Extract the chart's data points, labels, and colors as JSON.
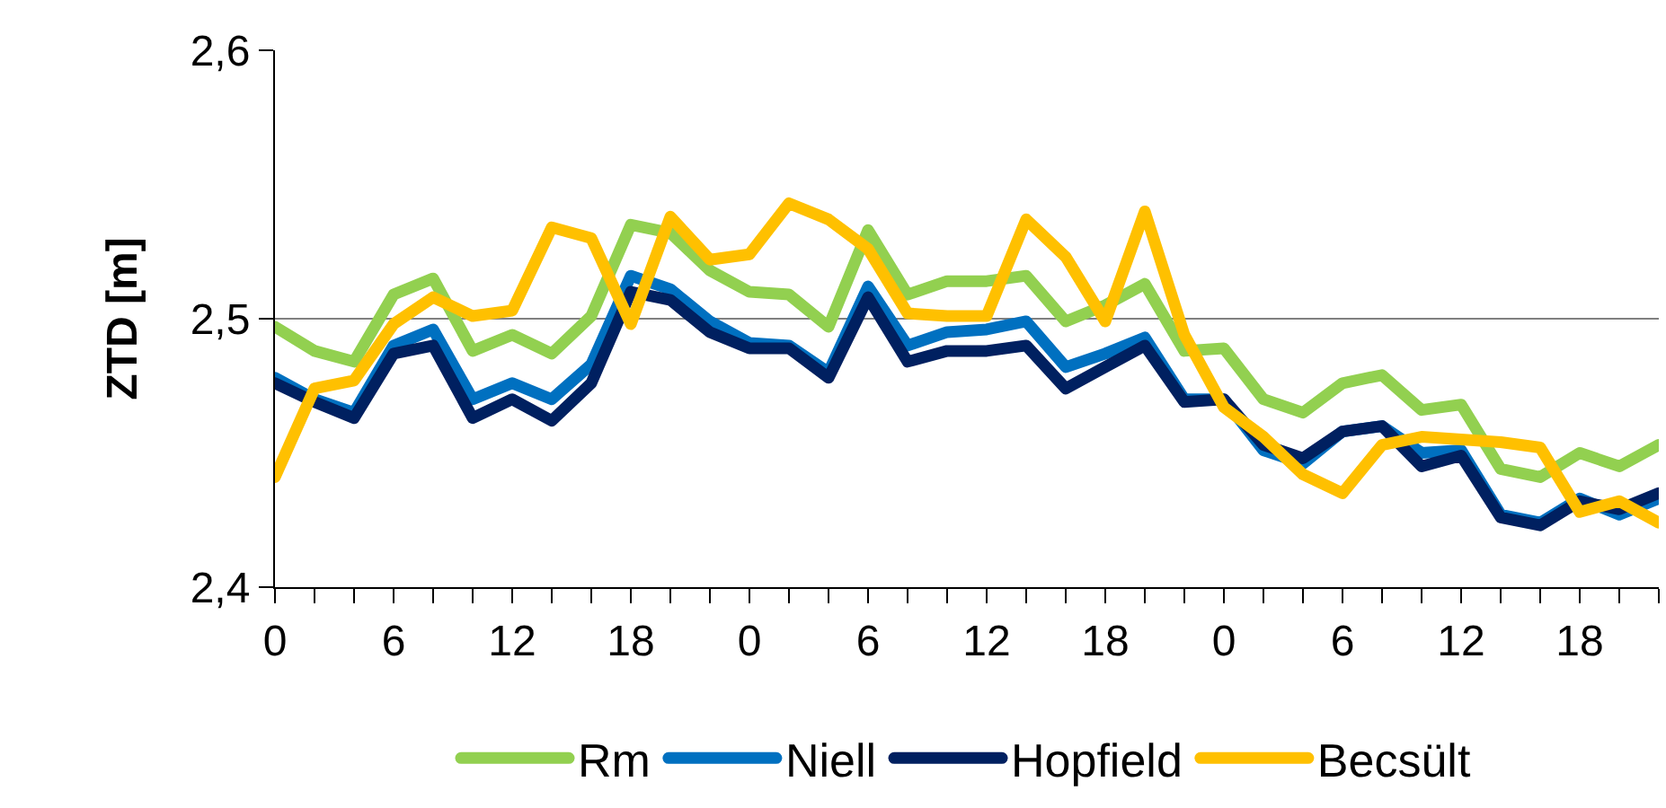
{
  "chart_data": {
    "type": "line",
    "ylabel": "ZTD [m]",
    "categories": [
      "0",
      null,
      null,
      "6",
      null,
      null,
      "12",
      null,
      null,
      "18",
      null,
      null,
      "0",
      null,
      null,
      "6",
      null,
      null,
      "12",
      null,
      null,
      "18",
      null,
      null,
      "0",
      null,
      null,
      "6",
      null,
      null,
      "12",
      null,
      null,
      "18",
      null,
      null
    ],
    "series": [
      {
        "name": "Rm",
        "color": "#92d050",
        "values": [
          2.497,
          2.488,
          2.484,
          2.509,
          2.515,
          2.488,
          2.494,
          2.487,
          2.501,
          2.535,
          2.532,
          2.518,
          2.51,
          2.509,
          2.497,
          2.533,
          2.509,
          2.514,
          2.514,
          2.516,
          2.499,
          2.505,
          2.513,
          2.488,
          2.489,
          2.47,
          2.465,
          2.476,
          2.479,
          2.466,
          2.468,
          2.444,
          2.441,
          2.45,
          2.445,
          2.453
        ]
      },
      {
        "name": "Niell",
        "color": "#0070c0",
        "values": [
          2.478,
          2.47,
          2.465,
          2.49,
          2.496,
          2.47,
          2.476,
          2.47,
          2.483,
          2.516,
          2.511,
          2.499,
          2.491,
          2.49,
          2.48,
          2.512,
          2.49,
          2.495,
          2.496,
          2.499,
          2.482,
          2.487,
          2.493,
          2.47,
          2.47,
          2.451,
          2.446,
          2.458,
          2.46,
          2.45,
          2.451,
          2.427,
          2.424,
          2.433,
          2.427,
          2.433
        ]
      },
      {
        "name": "Hopfield",
        "color": "#002060",
        "values": [
          2.476,
          2.469,
          2.463,
          2.487,
          2.49,
          2.463,
          2.47,
          2.462,
          2.476,
          2.51,
          2.507,
          2.495,
          2.489,
          2.489,
          2.478,
          2.508,
          2.484,
          2.488,
          2.488,
          2.49,
          2.474,
          2.482,
          2.49,
          2.469,
          2.47,
          2.453,
          2.448,
          2.458,
          2.46,
          2.445,
          2.449,
          2.426,
          2.423,
          2.432,
          2.429,
          2.435
        ]
      },
      {
        "name": "Becsült",
        "color": "#ffc000",
        "values": [
          2.441,
          2.474,
          2.477,
          2.498,
          2.508,
          2.501,
          2.503,
          2.534,
          2.53,
          2.498,
          2.538,
          2.522,
          2.524,
          2.543,
          2.537,
          2.526,
          2.502,
          2.501,
          2.501,
          2.537,
          2.523,
          2.499,
          2.54,
          2.494,
          2.467,
          2.456,
          2.442,
          2.435,
          2.453,
          2.456,
          2.455,
          2.454,
          2.452,
          2.428,
          2.432,
          2.424
        ]
      }
    ],
    "ylim": [
      2.4,
      2.6
    ],
    "yticks": [
      {
        "value": 2.4,
        "label": "2,4"
      },
      {
        "value": 2.5,
        "label": "2,5"
      },
      {
        "value": 2.6,
        "label": "2,6"
      }
    ],
    "grid": "y",
    "legend": "bottom",
    "marker": "none",
    "line_style": "solid"
  }
}
